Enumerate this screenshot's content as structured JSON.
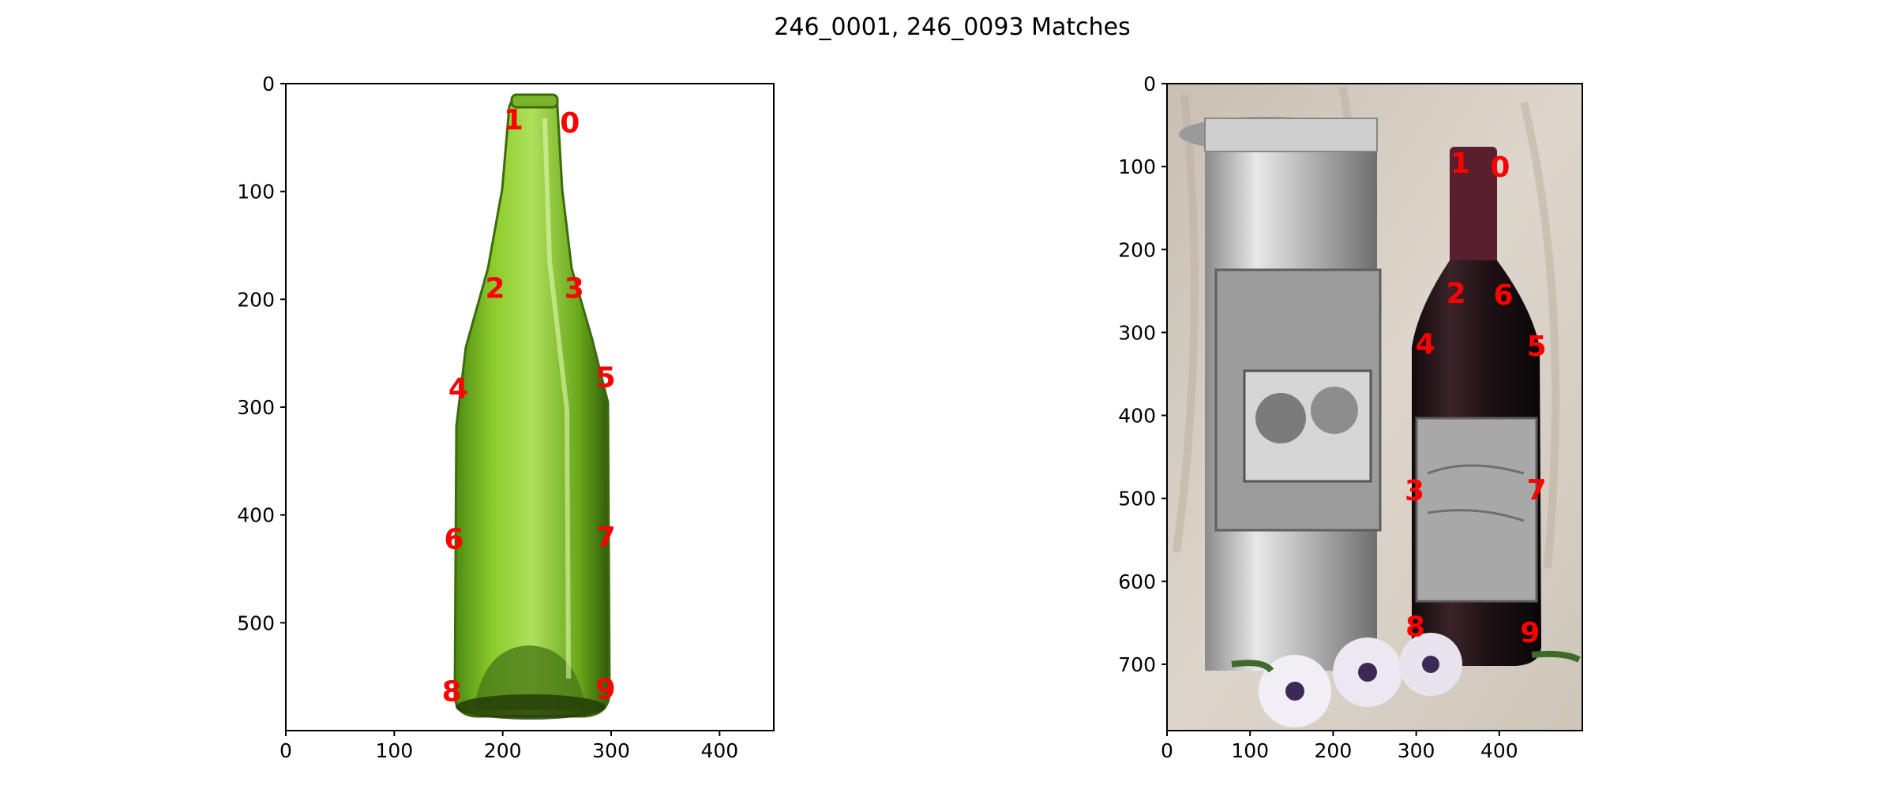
{
  "chart_data": {
    "type": "scatter",
    "title": "246_0001, 246_0093 Matches",
    "panels": [
      {
        "image": "green-glass-wine-bottle",
        "xlim": [
          0,
          450
        ],
        "ylim": [
          600,
          0
        ],
        "xticks": [
          0,
          100,
          200,
          300,
          400
        ],
        "yticks": [
          0,
          100,
          200,
          300,
          400,
          500
        ],
        "keypoints": [
          {
            "label": "0",
            "x": 262,
            "y": 36
          },
          {
            "label": "1",
            "x": 210,
            "y": 33
          },
          {
            "label": "2",
            "x": 193,
            "y": 189
          },
          {
            "label": "3",
            "x": 266,
            "y": 189
          },
          {
            "label": "4",
            "x": 159,
            "y": 282
          },
          {
            "label": "5",
            "x": 295,
            "y": 272
          },
          {
            "label": "6",
            "x": 155,
            "y": 422
          },
          {
            "label": "7",
            "x": 295,
            "y": 420
          },
          {
            "label": "8",
            "x": 153,
            "y": 563
          },
          {
            "label": "9",
            "x": 295,
            "y": 561
          }
        ]
      },
      {
        "image": "red-wine-bottle-with-pewter-label-and-tin",
        "xlim": [
          0,
          500
        ],
        "ylim": [
          780,
          0
        ],
        "xticks": [
          0,
          100,
          200,
          300,
          400
        ],
        "yticks": [
          0,
          100,
          200,
          300,
          400,
          500,
          600,
          700
        ],
        "keypoints": [
          {
            "label": "0",
            "x": 401,
            "y": 100
          },
          {
            "label": "1",
            "x": 353,
            "y": 95
          },
          {
            "label": "2",
            "x": 348,
            "y": 252
          },
          {
            "label": "3",
            "x": 298,
            "y": 490
          },
          {
            "label": "4",
            "x": 311,
            "y": 313
          },
          {
            "label": "5",
            "x": 445,
            "y": 316
          },
          {
            "label": "6",
            "x": 405,
            "y": 254
          },
          {
            "label": "7",
            "x": 445,
            "y": 489
          },
          {
            "label": "8",
            "x": 299,
            "y": 654
          },
          {
            "label": "9",
            "x": 437,
            "y": 661
          }
        ]
      }
    ]
  }
}
